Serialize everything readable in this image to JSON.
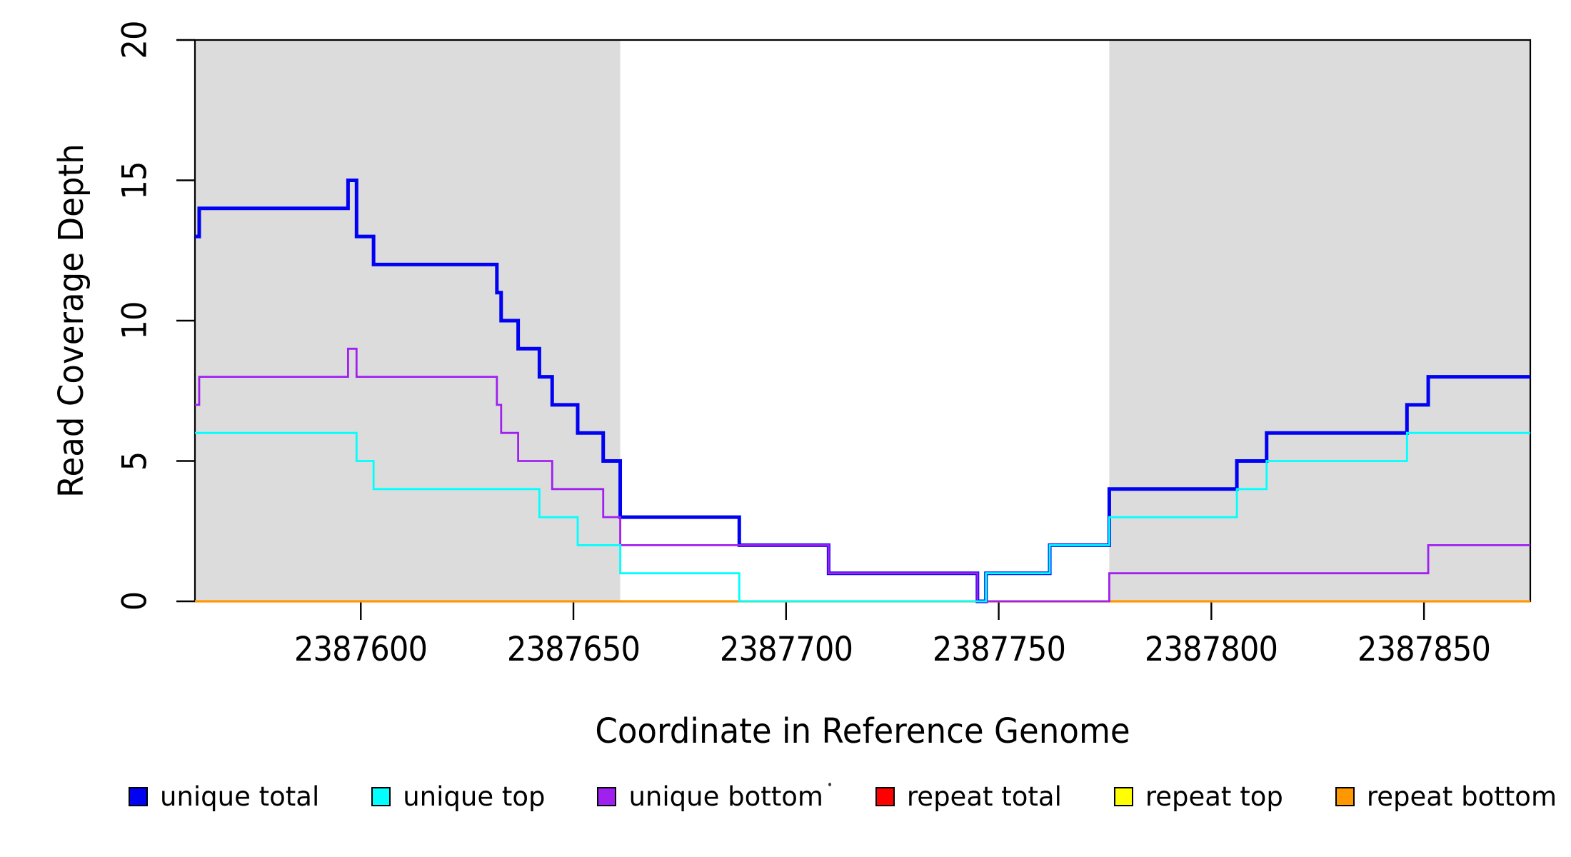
{
  "figure": {
    "xlabel": "Coordinate in Reference Genome",
    "ylabel": "Read Coverage Depth"
  },
  "legend": {
    "items": [
      {
        "label": "unique total",
        "color": "#0202f2"
      },
      {
        "label": "unique top",
        "color": "#00ffff"
      },
      {
        "label": "unique bottom",
        "color": "#a020f0"
      },
      {
        "label": "repeat total",
        "color": "#ff0000"
      },
      {
        "label": "repeat top",
        "color": "#ffff00"
      },
      {
        "label": "repeat bottom",
        "color": "#ff9800"
      }
    ]
  },
  "chart_data": {
    "type": "line",
    "step": true,
    "title": "",
    "xlabel": "Coordinate in Reference Genome",
    "ylabel": "Read Coverage Depth",
    "xlim": [
      2387561,
      2387875
    ],
    "ylim": [
      0,
      20
    ],
    "x_ticks": [
      2387600,
      2387650,
      2387700,
      2387750,
      2387800,
      2387850
    ],
    "y_ticks": [
      0,
      5,
      10,
      15,
      20
    ],
    "grid": false,
    "box": true,
    "shade_color": "#dcdcdc",
    "shaded_regions": [
      {
        "x0": 2387561,
        "x1": 2387661
      },
      {
        "x0": 2387776,
        "x1": 2387875
      }
    ],
    "legend_position": "bottom",
    "series": [
      {
        "name": "repeat total",
        "color": "#ff0000",
        "width": 2.6,
        "points": [
          [
            2387561,
            0
          ]
        ]
      },
      {
        "name": "repeat top",
        "color": "#ffff00",
        "width": 2.6,
        "points": [
          [
            2387561,
            0
          ]
        ]
      },
      {
        "name": "repeat bottom",
        "color": "#ff9800",
        "width": 3.2,
        "points": [
          [
            2387561,
            0
          ]
        ]
      },
      {
        "name": "unique total",
        "color": "#0202f2",
        "width": 5,
        "points": [
          [
            2387561,
            13
          ],
          [
            2387562,
            14
          ],
          [
            2387597,
            15
          ],
          [
            2387599,
            13
          ],
          [
            2387603,
            12
          ],
          [
            2387632,
            11
          ],
          [
            2387633,
            10
          ],
          [
            2387637,
            9
          ],
          [
            2387642,
            8
          ],
          [
            2387645,
            7
          ],
          [
            2387651,
            6
          ],
          [
            2387657,
            5
          ],
          [
            2387661,
            3
          ],
          [
            2387689,
            2
          ],
          [
            2387710,
            1
          ],
          [
            2387745,
            0
          ],
          [
            2387747,
            1
          ],
          [
            2387762,
            2
          ],
          [
            2387776,
            4
          ],
          [
            2387806,
            5
          ],
          [
            2387813,
            6
          ],
          [
            2387846,
            7
          ],
          [
            2387851,
            8
          ]
        ]
      },
      {
        "name": "unique bottom",
        "color": "#a020f0",
        "width": 2.8,
        "points": [
          [
            2387561,
            7
          ],
          [
            2387562,
            8
          ],
          [
            2387597,
            9
          ],
          [
            2387599,
            8
          ],
          [
            2387632,
            7
          ],
          [
            2387633,
            6
          ],
          [
            2387637,
            5
          ],
          [
            2387645,
            4
          ],
          [
            2387657,
            3
          ],
          [
            2387661,
            2
          ],
          [
            2387710,
            1
          ],
          [
            2387745,
            0
          ],
          [
            2387776,
            1
          ],
          [
            2387851,
            2
          ]
        ]
      },
      {
        "name": "unique top",
        "color": "#00ffff",
        "width": 2.8,
        "points": [
          [
            2387561,
            6
          ],
          [
            2387599,
            5
          ],
          [
            2387603,
            4
          ],
          [
            2387642,
            3
          ],
          [
            2387651,
            2
          ],
          [
            2387661,
            1
          ],
          [
            2387689,
            0
          ],
          [
            2387747,
            1
          ],
          [
            2387762,
            2
          ],
          [
            2387776,
            3
          ],
          [
            2387806,
            4
          ],
          [
            2387813,
            5
          ],
          [
            2387846,
            6
          ]
        ]
      }
    ]
  }
}
